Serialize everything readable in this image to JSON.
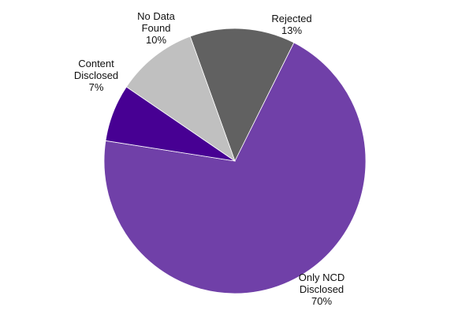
{
  "chart_data": {
    "type": "pie",
    "start_angle_deg": -20,
    "direction": "clockwise",
    "slices": [
      {
        "label_lines": [
          "Rejected",
          "13%"
        ],
        "value": 13,
        "color": "#616161"
      },
      {
        "label_lines": [
          "Only NCD",
          "Disclosed",
          "70%"
        ],
        "value": 70,
        "color": "#7040A8"
      },
      {
        "label_lines": [
          "Content",
          "Disclosed",
          "7%"
        ],
        "value": 7,
        "color": "#470093"
      },
      {
        "label_lines": [
          "No Data",
          "Found",
          "10%"
        ],
        "value": 10,
        "color": "#C0C0C0"
      }
    ]
  }
}
